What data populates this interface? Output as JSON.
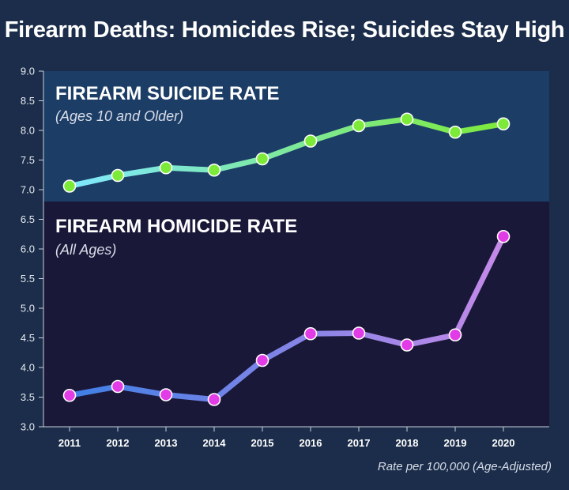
{
  "title": "Firearm Deaths: Homicides Rise; Suicides Stay High",
  "footnote": "Rate per 100,000 (Age-Adjusted)",
  "colors": {
    "background": "#1b2d4a",
    "suicide_panel": "#1c3d66",
    "homicide_panel": "#1a1838",
    "suicide_line_start": "#7fe8ff",
    "suicide_line_end": "#7dea3a",
    "suicide_marker": "#7dea3a",
    "homicide_line_start": "#3f7fe6",
    "homicide_line_end": "#c58ae8",
    "homicide_marker": "#e23ce6"
  },
  "chart_data": {
    "type": "line",
    "x": [
      "2011",
      "2012",
      "2013",
      "2014",
      "2015",
      "2016",
      "2017",
      "2018",
      "2019",
      "2020"
    ],
    "ylim": [
      3.0,
      9.0
    ],
    "yticks": [
      "3.0",
      "3.5",
      "4.0",
      "4.5",
      "5.0",
      "5.5",
      "6.0",
      "6.5",
      "7.0",
      "7.5",
      "8.0",
      "8.5",
      "9.0"
    ],
    "grid": false,
    "series": [
      {
        "key": "suicide",
        "name": "FIREARM SUICIDE RATE",
        "subtitle": "(Ages 10 and Older)",
        "values": [
          7.06,
          7.24,
          7.37,
          7.33,
          7.52,
          7.82,
          8.08,
          8.19,
          7.97,
          8.11
        ]
      },
      {
        "key": "homicide",
        "name": "FIREARM HOMICIDE RATE",
        "subtitle": "(All Ages)",
        "values": [
          3.53,
          3.68,
          3.54,
          3.46,
          4.12,
          4.57,
          4.58,
          4.38,
          4.55,
          6.21
        ]
      }
    ]
  }
}
